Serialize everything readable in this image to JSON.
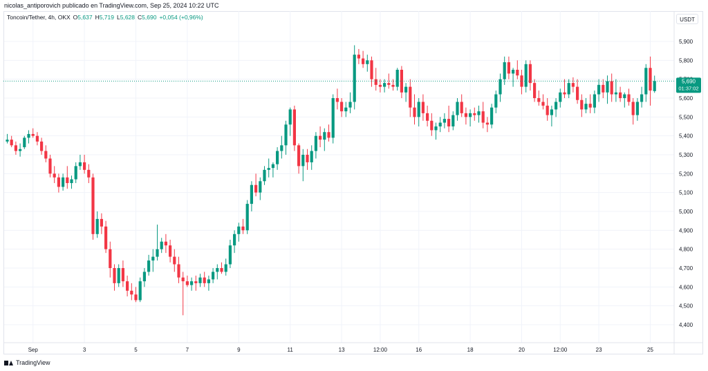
{
  "header": {
    "attribution": "nicolas_antiporovich publicado en TradingView.com, Sep 25, 2024 10:22 UTC"
  },
  "legend": {
    "symbol": "Toncoin/Tether, 4h, OKX",
    "open_label": "O",
    "open": "5,637",
    "high_label": "H",
    "high": "5,719",
    "low_label": "L",
    "low": "5,628",
    "close_label": "C",
    "close": "5,690",
    "change": "+0,054 (+0,96%)"
  },
  "currency_button": "USDT",
  "footer": {
    "brand": "TradingView"
  },
  "price_tag": {
    "price": "5,690",
    "countdown": "01:37:02",
    "value": 5.69
  },
  "colors": {
    "up": "#089981",
    "down": "#f23645",
    "grid": "#f0f3fa",
    "axis_text": "#131722"
  },
  "chart_data": {
    "type": "candlestick",
    "title": "Toncoin/Tether, 4h, OKX",
    "y_ticks": [
      "5,900",
      "5,800",
      "5,700",
      "5,600",
      "5,500",
      "5,400",
      "5,300",
      "5,200",
      "5,100",
      "5,000",
      "4,900",
      "4,800",
      "4,700",
      "4,600",
      "4,500",
      "4,400"
    ],
    "y_tick_values": [
      5.9,
      5.8,
      5.7,
      5.6,
      5.5,
      5.4,
      5.3,
      5.2,
      5.1,
      5.0,
      4.9,
      4.8,
      4.7,
      4.6,
      4.5,
      4.4
    ],
    "ylim": [
      4.35,
      5.97
    ],
    "x_ticks": [
      {
        "label": "Sep",
        "index": 6
      },
      {
        "label": "3",
        "index": 18
      },
      {
        "label": "5",
        "index": 30
      },
      {
        "label": "7",
        "index": 42
      },
      {
        "label": "9",
        "index": 54
      },
      {
        "label": "11",
        "index": 66
      },
      {
        "label": "13",
        "index": 78
      },
      {
        "label": "12:00",
        "index": 87
      },
      {
        "label": "16",
        "index": 96
      },
      {
        "label": "18",
        "index": 108
      },
      {
        "label": "20",
        "index": 120
      },
      {
        "label": "12:00",
        "index": 129
      },
      {
        "label": "23",
        "index": 138
      },
      {
        "label": "25",
        "index": 150
      }
    ],
    "candles": [
      [
        5.37,
        5.41,
        5.36,
        5.38
      ],
      [
        5.38,
        5.4,
        5.34,
        5.35
      ],
      [
        5.35,
        5.37,
        5.3,
        5.32
      ],
      [
        5.32,
        5.36,
        5.29,
        5.33
      ],
      [
        5.34,
        5.4,
        5.33,
        5.39
      ],
      [
        5.39,
        5.43,
        5.36,
        5.41
      ],
      [
        5.41,
        5.44,
        5.39,
        5.4
      ],
      [
        5.4,
        5.42,
        5.35,
        5.37
      ],
      [
        5.37,
        5.39,
        5.3,
        5.32
      ],
      [
        5.32,
        5.35,
        5.26,
        5.28
      ],
      [
        5.28,
        5.3,
        5.18,
        5.2
      ],
      [
        5.2,
        5.24,
        5.15,
        5.18
      ],
      [
        5.18,
        5.2,
        5.1,
        5.13
      ],
      [
        5.13,
        5.2,
        5.11,
        5.18
      ],
      [
        5.18,
        5.24,
        5.12,
        5.15
      ],
      [
        5.15,
        5.19,
        5.12,
        5.17
      ],
      [
        5.17,
        5.26,
        5.15,
        5.24
      ],
      [
        5.24,
        5.3,
        5.22,
        5.26
      ],
      [
        5.26,
        5.3,
        5.2,
        5.22
      ],
      [
        5.22,
        5.25,
        5.15,
        5.18
      ],
      [
        5.18,
        5.2,
        4.85,
        4.88
      ],
      [
        4.88,
        5.0,
        4.86,
        4.96
      ],
      [
        4.96,
        4.99,
        4.88,
        4.92
      ],
      [
        4.92,
        4.95,
        4.78,
        4.8
      ],
      [
        4.8,
        4.84,
        4.65,
        4.7
      ],
      [
        4.7,
        4.72,
        4.58,
        4.62
      ],
      [
        4.62,
        4.72,
        4.6,
        4.7
      ],
      [
        4.7,
        4.74,
        4.6,
        4.63
      ],
      [
        4.63,
        4.66,
        4.55,
        4.58
      ],
      [
        4.58,
        4.62,
        4.53,
        4.56
      ],
      [
        4.56,
        4.6,
        4.52,
        4.53
      ],
      [
        4.53,
        4.65,
        4.52,
        4.63
      ],
      [
        4.63,
        4.7,
        4.6,
        4.68
      ],
      [
        4.68,
        4.77,
        4.66,
        4.74
      ],
      [
        4.74,
        4.8,
        4.68,
        4.76
      ],
      [
        4.76,
        4.93,
        4.74,
        4.8
      ],
      [
        4.8,
        4.86,
        4.78,
        4.84
      ],
      [
        4.84,
        4.88,
        4.78,
        4.82
      ],
      [
        4.82,
        4.85,
        4.73,
        4.76
      ],
      [
        4.76,
        4.8,
        4.68,
        4.72
      ],
      [
        4.72,
        4.76,
        4.62,
        4.65
      ],
      [
        4.65,
        4.68,
        4.45,
        4.63
      ],
      [
        4.63,
        4.66,
        4.6,
        4.61
      ],
      [
        4.61,
        4.65,
        4.58,
        4.63
      ],
      [
        4.63,
        4.66,
        4.58,
        4.62
      ],
      [
        4.62,
        4.67,
        4.6,
        4.65
      ],
      [
        4.65,
        4.68,
        4.6,
        4.62
      ],
      [
        4.62,
        4.66,
        4.58,
        4.64
      ],
      [
        4.64,
        4.7,
        4.62,
        4.68
      ],
      [
        4.68,
        4.72,
        4.64,
        4.7
      ],
      [
        4.7,
        4.73,
        4.67,
        4.68
      ],
      [
        4.68,
        4.75,
        4.66,
        4.72
      ],
      [
        4.72,
        4.85,
        4.7,
        4.82
      ],
      [
        4.82,
        4.9,
        4.78,
        4.88
      ],
      [
        4.88,
        4.94,
        4.84,
        4.92
      ],
      [
        4.92,
        4.96,
        4.88,
        4.9
      ],
      [
        4.9,
        5.06,
        4.88,
        5.04
      ],
      [
        5.04,
        5.16,
        5.0,
        5.14
      ],
      [
        5.14,
        5.2,
        5.08,
        5.1
      ],
      [
        5.1,
        5.18,
        5.06,
        5.16
      ],
      [
        5.16,
        5.24,
        5.14,
        5.22
      ],
      [
        5.22,
        5.28,
        5.18,
        5.23
      ],
      [
        5.23,
        5.26,
        5.18,
        5.25
      ],
      [
        5.25,
        5.34,
        5.22,
        5.32
      ],
      [
        5.32,
        5.4,
        5.28,
        5.35
      ],
      [
        5.35,
        5.48,
        5.3,
        5.46
      ],
      [
        5.46,
        5.55,
        5.4,
        5.54
      ],
      [
        5.54,
        5.56,
        5.32,
        5.35
      ],
      [
        5.35,
        5.36,
        5.2,
        5.24
      ],
      [
        5.24,
        5.33,
        5.16,
        5.3
      ],
      [
        5.3,
        5.33,
        5.22,
        5.26
      ],
      [
        5.26,
        5.35,
        5.22,
        5.32
      ],
      [
        5.32,
        5.42,
        5.28,
        5.4
      ],
      [
        5.4,
        5.45,
        5.34,
        5.38
      ],
      [
        5.38,
        5.44,
        5.32,
        5.42
      ],
      [
        5.42,
        5.46,
        5.37,
        5.39
      ],
      [
        5.39,
        5.62,
        5.36,
        5.6
      ],
      [
        5.6,
        5.65,
        5.54,
        5.58
      ],
      [
        5.58,
        5.6,
        5.5,
        5.53
      ],
      [
        5.53,
        5.58,
        5.5,
        5.55
      ],
      [
        5.55,
        5.63,
        5.52,
        5.58
      ],
      [
        5.58,
        5.88,
        5.54,
        5.83
      ],
      [
        5.83,
        5.86,
        5.78,
        5.81
      ],
      [
        5.81,
        5.85,
        5.76,
        5.78
      ],
      [
        5.78,
        5.83,
        5.74,
        5.8
      ],
      [
        5.8,
        5.82,
        5.66,
        5.7
      ],
      [
        5.7,
        5.76,
        5.64,
        5.67
      ],
      [
        5.67,
        5.7,
        5.63,
        5.66
      ],
      [
        5.66,
        5.7,
        5.63,
        5.68
      ],
      [
        5.68,
        5.73,
        5.65,
        5.67
      ],
      [
        5.67,
        5.7,
        5.64,
        5.66
      ],
      [
        5.66,
        5.76,
        5.64,
        5.75
      ],
      [
        5.75,
        5.77,
        5.6,
        5.63
      ],
      [
        5.63,
        5.68,
        5.58,
        5.66
      ],
      [
        5.66,
        5.7,
        5.5,
        5.55
      ],
      [
        5.55,
        5.62,
        5.46,
        5.5
      ],
      [
        5.5,
        5.6,
        5.45,
        5.58
      ],
      [
        5.58,
        5.62,
        5.48,
        5.52
      ],
      [
        5.52,
        5.56,
        5.45,
        5.48
      ],
      [
        5.48,
        5.52,
        5.4,
        5.43
      ],
      [
        5.43,
        5.47,
        5.38,
        5.45
      ],
      [
        5.45,
        5.5,
        5.42,
        5.47
      ],
      [
        5.47,
        5.52,
        5.44,
        5.49
      ],
      [
        5.49,
        5.56,
        5.42,
        5.45
      ],
      [
        5.45,
        5.53,
        5.43,
        5.51
      ],
      [
        5.51,
        5.6,
        5.48,
        5.58
      ],
      [
        5.58,
        5.62,
        5.5,
        5.52
      ],
      [
        5.52,
        5.55,
        5.46,
        5.5
      ],
      [
        5.5,
        5.54,
        5.45,
        5.52
      ],
      [
        5.52,
        5.55,
        5.48,
        5.51
      ],
      [
        5.51,
        5.56,
        5.47,
        5.53
      ],
      [
        5.53,
        5.58,
        5.44,
        5.47
      ],
      [
        5.47,
        5.5,
        5.42,
        5.46
      ],
      [
        5.46,
        5.57,
        5.44,
        5.55
      ],
      [
        5.55,
        5.64,
        5.52,
        5.62
      ],
      [
        5.62,
        5.73,
        5.58,
        5.7
      ],
      [
        5.7,
        5.82,
        5.67,
        5.79
      ],
      [
        5.79,
        5.82,
        5.7,
        5.73
      ],
      [
        5.73,
        5.76,
        5.66,
        5.75
      ],
      [
        5.75,
        5.8,
        5.7,
        5.72
      ],
      [
        5.72,
        5.75,
        5.62,
        5.66
      ],
      [
        5.66,
        5.8,
        5.63,
        5.78
      ],
      [
        5.78,
        5.8,
        5.64,
        5.68
      ],
      [
        5.68,
        5.7,
        5.58,
        5.6
      ],
      [
        5.6,
        5.64,
        5.56,
        5.58
      ],
      [
        5.58,
        5.62,
        5.54,
        5.56
      ],
      [
        5.56,
        5.6,
        5.48,
        5.51
      ],
      [
        5.51,
        5.56,
        5.45,
        5.54
      ],
      [
        5.54,
        5.6,
        5.5,
        5.58
      ],
      [
        5.58,
        5.65,
        5.55,
        5.63
      ],
      [
        5.63,
        5.7,
        5.6,
        5.62
      ],
      [
        5.62,
        5.7,
        5.6,
        5.68
      ],
      [
        5.68,
        5.71,
        5.63,
        5.66
      ],
      [
        5.66,
        5.7,
        5.57,
        5.59
      ],
      [
        5.59,
        5.62,
        5.5,
        5.54
      ],
      [
        5.54,
        5.6,
        5.52,
        5.57
      ],
      [
        5.57,
        5.62,
        5.52,
        5.55
      ],
      [
        5.55,
        5.64,
        5.52,
        5.62
      ],
      [
        5.62,
        5.7,
        5.58,
        5.67
      ],
      [
        5.67,
        5.7,
        5.6,
        5.63
      ],
      [
        5.63,
        5.72,
        5.57,
        5.69
      ],
      [
        5.69,
        5.73,
        5.58,
        5.62
      ],
      [
        5.62,
        5.7,
        5.58,
        5.63
      ],
      [
        5.63,
        5.66,
        5.58,
        5.6
      ],
      [
        5.6,
        5.63,
        5.55,
        5.62
      ],
      [
        5.62,
        5.65,
        5.56,
        5.58
      ],
      [
        5.58,
        5.6,
        5.46,
        5.51
      ],
      [
        5.51,
        5.6,
        5.48,
        5.58
      ],
      [
        5.58,
        5.66,
        5.55,
        5.62
      ],
      [
        5.62,
        5.78,
        5.58,
        5.76
      ],
      [
        5.76,
        5.82,
        5.56,
        5.64
      ],
      [
        5.637,
        5.719,
        5.628,
        5.69
      ]
    ]
  }
}
